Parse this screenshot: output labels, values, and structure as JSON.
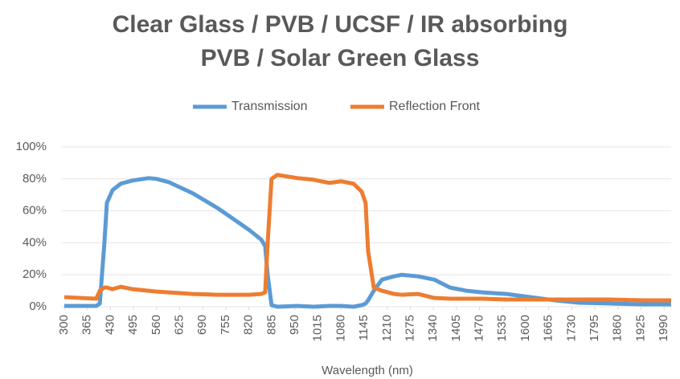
{
  "chart_data": {
    "type": "line",
    "title": [
      "Clear Glass / PVB / UCSF / IR absorbing",
      "PVB / Solar Green Glass"
    ],
    "x_label": "Wavelength (nm)",
    "x": [
      300,
      390,
      400,
      413,
      420,
      436,
      459,
      492,
      538,
      560,
      594,
      662,
      730,
      776,
      821,
      855,
      866,
      873,
      884,
      900,
      957,
      1002,
      1047,
      1081,
      1115,
      1138,
      1149,
      1156,
      1172,
      1195,
      1229,
      1251,
      1297,
      1342,
      1387,
      1433,
      1478,
      1546,
      1614,
      1682,
      1750,
      1840,
      1931,
      2010
    ],
    "series": [
      {
        "name": "Transmission",
        "color": "#5b9bd5",
        "values": [
          0.5,
          0.5,
          2,
          40,
          65,
          73,
          77,
          79,
          80.5,
          80,
          78,
          71,
          62,
          55,
          48,
          42,
          38,
          20,
          1,
          0,
          0.5,
          0,
          0.5,
          0.5,
          0,
          1,
          2,
          4,
          10,
          17,
          19,
          20,
          19,
          17,
          12,
          10,
          9,
          8,
          6,
          4,
          2.5,
          2,
          1.5,
          1.5
        ]
      },
      {
        "name": "Reflection Front",
        "color": "#ed7d31",
        "values": [
          6,
          5,
          10,
          12,
          12,
          11,
          12.5,
          11,
          10,
          9.5,
          9,
          8,
          7.5,
          7.5,
          7.5,
          8,
          9,
          40,
          80,
          82.5,
          80.5,
          79.5,
          77.5,
          78.5,
          77,
          72,
          65,
          35,
          12,
          10,
          8,
          7.5,
          8,
          5.5,
          5,
          5,
          5,
          4.5,
          4.5,
          4.5,
          4.5,
          4.5,
          4,
          4
        ]
      }
    ],
    "xlim": [
      300,
      2010
    ],
    "xticks": [
      300,
      365,
      430,
      495,
      560,
      625,
      690,
      755,
      820,
      885,
      950,
      1015,
      1080,
      1145,
      1210,
      1275,
      1340,
      1405,
      1470,
      1535,
      1600,
      1665,
      1730,
      1795,
      1860,
      1925,
      1990
    ],
    "ylim": [
      0,
      100
    ],
    "yticks": [
      {
        "value": 0,
        "label": "0%"
      },
      {
        "value": 20,
        "label": "20%"
      },
      {
        "value": 40,
        "label": "40%"
      },
      {
        "value": 60,
        "label": "60%"
      },
      {
        "value": 80,
        "label": "80%"
      },
      {
        "value": 100,
        "label": "100%"
      }
    ],
    "grid": true,
    "legend": "top"
  }
}
